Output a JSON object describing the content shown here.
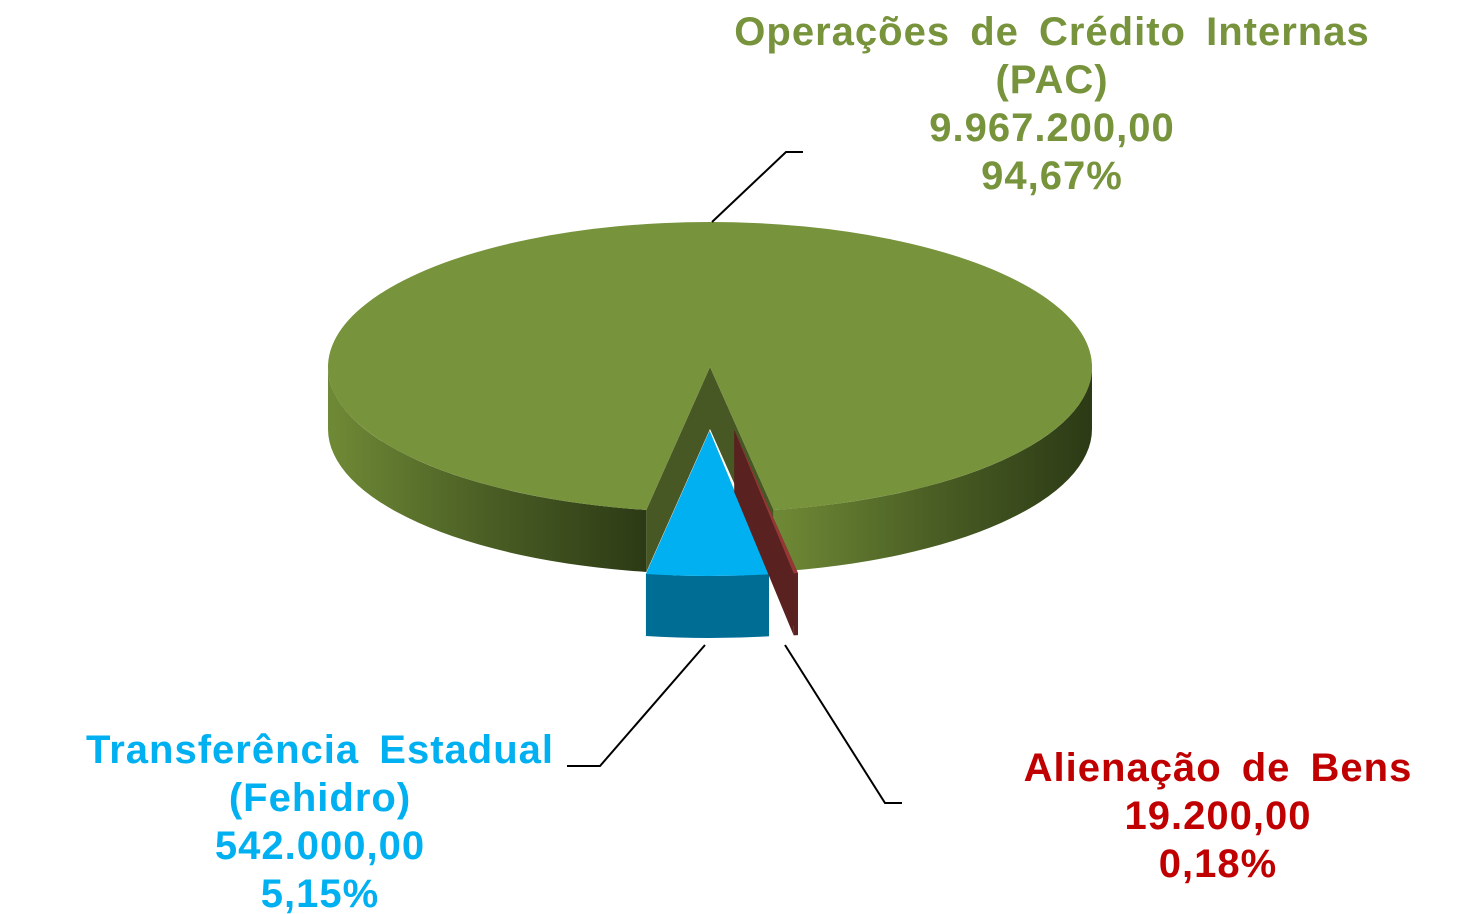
{
  "chart_data": {
    "type": "pie3d",
    "categories": [
      "Operações de Crédito Internas\n(PAC)",
      "Transferência Estadual\n(Fehidro)",
      "Alienação de Bens"
    ],
    "values": [
      9967200,
      542000,
      19200
    ],
    "value_labels": [
      "9.967.200,00",
      "542.000,00",
      "19.200,00"
    ],
    "percents": [
      94.67,
      5.15,
      0.18
    ],
    "percent_labels": [
      "94,67%",
      "5,15%",
      "0,18%"
    ],
    "colors": [
      "#77933c",
      "#00b0f0",
      "#953735"
    ],
    "label_colors": [
      "#77933c",
      "#00b0f0",
      "#c00000"
    ]
  }
}
